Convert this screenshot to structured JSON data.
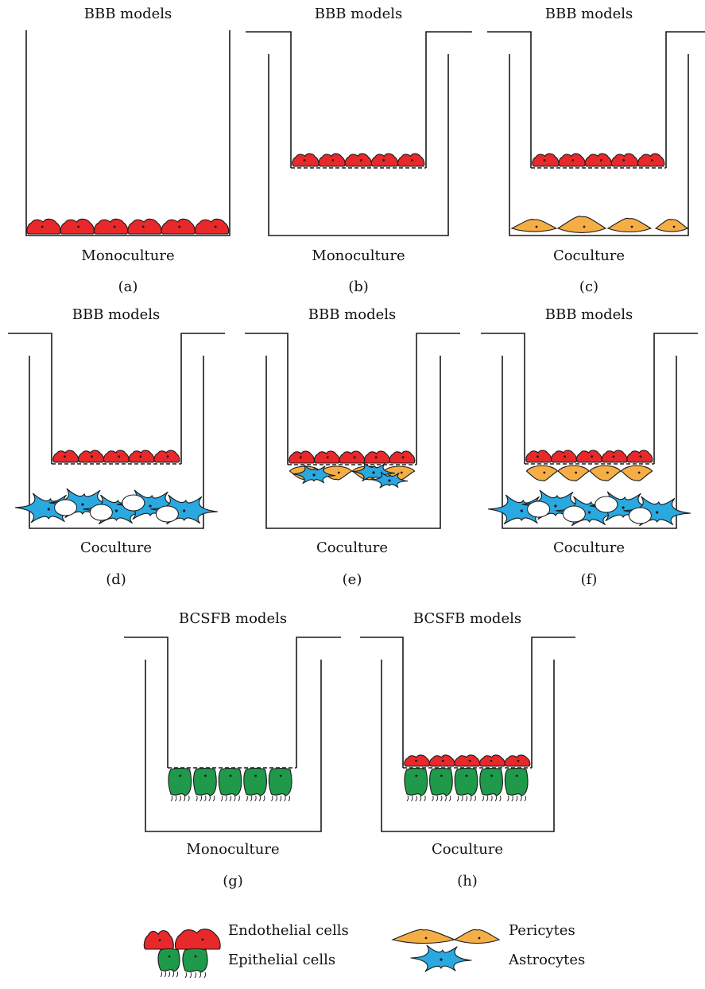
{
  "panels": [
    {
      "header": "BBB models",
      "culture": "Monoculture",
      "tag": "(a)"
    },
    {
      "header": "BBB models",
      "culture": "Monoculture",
      "tag": "(b)"
    },
    {
      "header": "BBB models",
      "culture": "Coculture",
      "tag": "(c)"
    },
    {
      "header": "BBB models",
      "culture": "Coculture",
      "tag": "(d)"
    },
    {
      "header": "BBB models",
      "culture": "Coculture",
      "tag": "(e)"
    },
    {
      "header": "BBB models",
      "culture": "Coculture",
      "tag": "(f)"
    },
    {
      "header": "BCSFB models",
      "culture": "Monoculture",
      "tag": "(g)"
    },
    {
      "header": "BCSFB models",
      "culture": "Coculture",
      "tag": "(h)"
    }
  ],
  "legend": {
    "endothelial": "Endothelial cells",
    "pericytes": "Pericytes",
    "epithelial": "Epithelial cells",
    "astrocytes": "Astrocytes"
  },
  "colors": {
    "endothelial": "#e8282b",
    "pericyte": "#f5ae45",
    "astrocyte": "#2aa8e0",
    "epithelial": "#1e9a4a",
    "stroke": "#1a1a1a"
  }
}
